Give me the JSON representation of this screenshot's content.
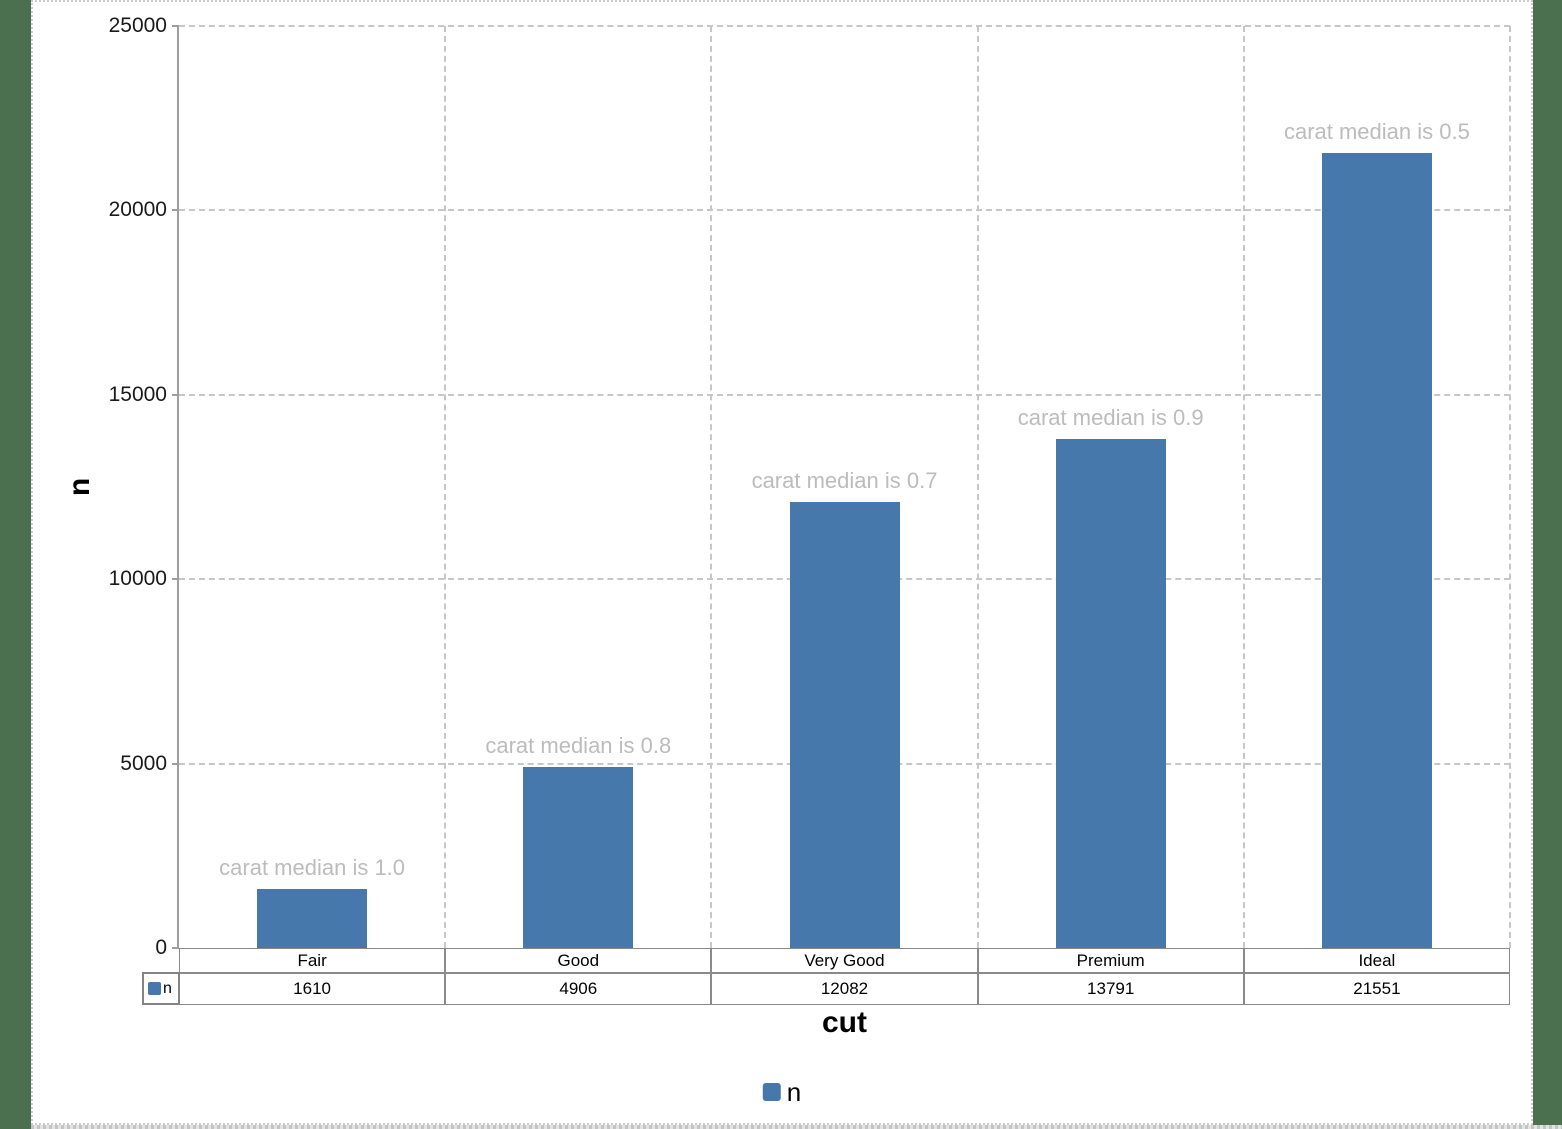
{
  "workspace": {
    "background_color": "#4a7050",
    "panel_color": "#ffffff"
  },
  "chart_data": {
    "type": "bar",
    "title": "",
    "categories": [
      "Fair",
      "Good",
      "Very Good",
      "Premium",
      "Ideal"
    ],
    "series": [
      {
        "name": "n",
        "color": "#4778ab",
        "values": [
          1610,
          4906,
          12082,
          13791,
          21551
        ]
      }
    ],
    "annotations": [
      "carat median is 1.0",
      "carat median is 0.8",
      "carat median is 0.7",
      "carat median is 0.9",
      "carat median is 0.5"
    ],
    "xlabel": "cut",
    "ylabel": "n",
    "ylim": [
      0,
      25000
    ],
    "yticks": [
      0,
      5000,
      10000,
      15000,
      20000,
      25000
    ],
    "grid": "dashed horizontal and vertical gridlines",
    "legend_position": "bottom",
    "legend_label": "n",
    "data_table": {
      "shown": true,
      "row_label": "n",
      "columns": [
        "Fair",
        "Good",
        "Very Good",
        "Premium",
        "Ideal"
      ],
      "values": [
        "1610",
        "4906",
        "12082",
        "13791",
        "21551"
      ]
    },
    "colors": {
      "bar": "#4778ab",
      "annotation_text": "#bcbcbc",
      "gridline": "#c7c7c7",
      "axis": "#9e9e9e",
      "table_border": "#848484"
    }
  }
}
